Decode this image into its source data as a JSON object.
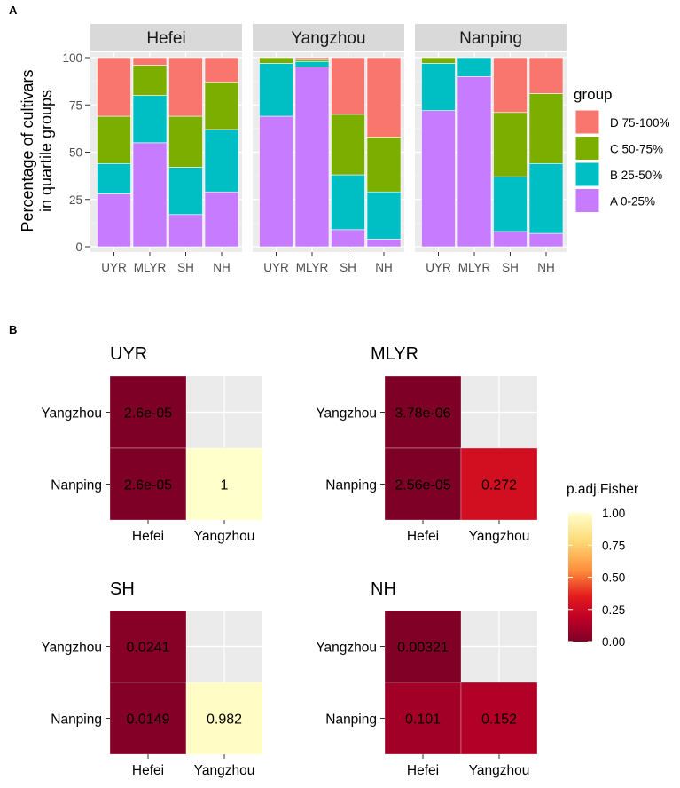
{
  "figure_labels": {
    "a": "A",
    "b": "B"
  },
  "colors": {
    "panel_bg": "#EBEBEB",
    "grid": "#FFFFFF",
    "strip_bg": "#D9D9D9",
    "groups": {
      "D 75-100%": "#F8766D",
      "C 50-75%": "#7CAE00",
      "B 25-50%": "#00BFC4",
      "A 0-25%": "#C77CFF"
    },
    "gradient_low": "#7F0026",
    "gradient_mid": "#E8291C",
    "gradient_high": "#FFFFCC"
  },
  "chart_data": [
    {
      "id": "panel-a",
      "type": "bar",
      "stacked": true,
      "ylabel": "Percentage of cultivars\nin quartile groups",
      "ylim": [
        0,
        100
      ],
      "yticks": [
        0,
        25,
        50,
        75,
        100
      ],
      "categories": [
        "UYR",
        "MLYR",
        "SH",
        "NH"
      ],
      "legend": {
        "title": "group",
        "position": "right",
        "entries": [
          "D 75-100%",
          "C 50-75%",
          "B 25-50%",
          "A 0-25%"
        ]
      },
      "facets": [
        {
          "name": "Hefei",
          "series": [
            {
              "name": "A 0-25%",
              "values": [
                28,
                55,
                17,
                29
              ]
            },
            {
              "name": "B 25-50%",
              "values": [
                16,
                25,
                25,
                33
              ]
            },
            {
              "name": "C 50-75%",
              "values": [
                25,
                16,
                27,
                25
              ]
            },
            {
              "name": "D 75-100%",
              "values": [
                31,
                4,
                31,
                13
              ]
            }
          ]
        },
        {
          "name": "Yangzhou",
          "series": [
            {
              "name": "A 0-25%",
              "values": [
                69,
                95,
                9,
                4
              ]
            },
            {
              "name": "B 25-50%",
              "values": [
                28,
                3,
                29,
                25
              ]
            },
            {
              "name": "C 50-75%",
              "values": [
                3,
                1,
                32,
                29
              ]
            },
            {
              "name": "D 75-100%",
              "values": [
                0,
                1,
                30,
                42
              ]
            }
          ]
        },
        {
          "name": "Nanping",
          "series": [
            {
              "name": "A 0-25%",
              "values": [
                72,
                90,
                8,
                7
              ]
            },
            {
              "name": "B 25-50%",
              "values": [
                25,
                10,
                29,
                37
              ]
            },
            {
              "name": "C 50-75%",
              "values": [
                3,
                0,
                34,
                37
              ]
            },
            {
              "name": "D 75-100%",
              "values": [
                0,
                0,
                29,
                19
              ]
            }
          ]
        }
      ]
    },
    {
      "id": "panel-b",
      "type": "heatmap",
      "x_categories": [
        "Hefei",
        "Yangzhou"
      ],
      "y_categories": [
        "Yangzhou",
        "Nanping"
      ],
      "legend": {
        "title": "p.adj.Fisher",
        "range": [
          0,
          1
        ],
        "ticks": [
          "0.00",
          "0.25",
          "0.50",
          "0.75",
          "1.00"
        ]
      },
      "panels": [
        {
          "title": "UYR",
          "cells": [
            {
              "x": "Hefei",
              "y": "Yangzhou",
              "value": 2.6e-05,
              "label": "2.6e-05"
            },
            {
              "x": "Hefei",
              "y": "Nanping",
              "value": 2.6e-05,
              "label": "2.6e-05"
            },
            {
              "x": "Yangzhou",
              "y": "Nanping",
              "value": 1.0,
              "label": "1"
            }
          ]
        },
        {
          "title": "MLYR",
          "cells": [
            {
              "x": "Hefei",
              "y": "Yangzhou",
              "value": 3.78e-06,
              "label": "3.78e-06"
            },
            {
              "x": "Hefei",
              "y": "Nanping",
              "value": 2.56e-05,
              "label": "2.56e-05"
            },
            {
              "x": "Yangzhou",
              "y": "Nanping",
              "value": 0.272,
              "label": "0.272"
            }
          ]
        },
        {
          "title": "SH",
          "cells": [
            {
              "x": "Hefei",
              "y": "Yangzhou",
              "value": 0.0241,
              "label": "0.0241"
            },
            {
              "x": "Hefei",
              "y": "Nanping",
              "value": 0.0149,
              "label": "0.0149"
            },
            {
              "x": "Yangzhou",
              "y": "Nanping",
              "value": 0.982,
              "label": "0.982"
            }
          ]
        },
        {
          "title": "NH",
          "cells": [
            {
              "x": "Hefei",
              "y": "Yangzhou",
              "value": 0.00321,
              "label": "0.00321"
            },
            {
              "x": "Hefei",
              "y": "Nanping",
              "value": 0.101,
              "label": "0.101"
            },
            {
              "x": "Yangzhou",
              "y": "Nanping",
              "value": 0.152,
              "label": "0.152"
            }
          ]
        }
      ]
    }
  ]
}
